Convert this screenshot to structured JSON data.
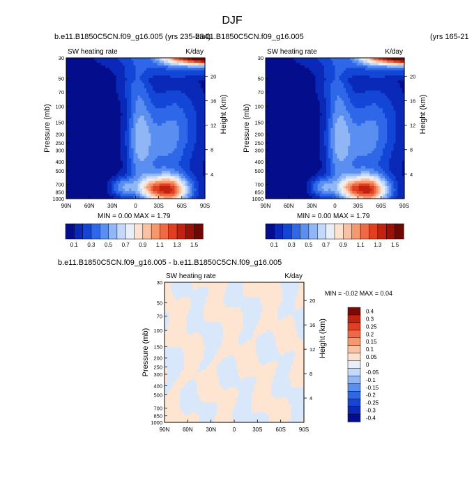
{
  "page": {
    "title": "DJF",
    "top_left_header": "b.e11.B1850C5CN.f09_g16.005 (yrs 235-284)",
    "top_right_header": "b.e11.B1850C5CN.f09_g16.005",
    "top_right_years": "(yrs 165-21",
    "diff_header": "b.e11.B1850C5CN.f09_g16.005 - b.e11.B1850C5CN.f09_g16.005"
  },
  "chart_data": [
    {
      "type": "heatmap",
      "panel": "top-left",
      "variable_label": "SW heating rate",
      "units": "K/day",
      "ylabel": "Pressure (mb)",
      "ylabel_right": "Height (km)",
      "x_ticks": [
        "90N",
        "60N",
        "30N",
        "0",
        "30S",
        "60S",
        "90S"
      ],
      "y_ticks": [
        "30",
        "50",
        "70",
        "100",
        "150",
        "200",
        "250",
        "300",
        "400",
        "500",
        "700",
        "850",
        "1000"
      ],
      "y_right_ticks": [
        "20",
        "16",
        "12",
        "8",
        "4"
      ],
      "ylim": [
        30,
        1000
      ],
      "min_max_label": "MIN =  0.00   MAX =   1.79",
      "min": 0.0,
      "max": 1.79,
      "colorbar_labels": [
        "0.1",
        "0.3",
        "0.5",
        "0.7",
        "0.9",
        "1.1",
        "1.3",
        "1.5"
      ],
      "colorbar_levels": [
        0.1,
        0.2,
        0.3,
        0.4,
        0.5,
        0.6,
        0.7,
        0.8,
        0.9,
        1.0,
        1.1,
        1.2,
        1.3,
        1.4,
        1.5
      ]
    },
    {
      "type": "heatmap",
      "panel": "top-right",
      "variable_label": "SW heating rate",
      "units": "K/day",
      "ylabel": "Pressure (mb)",
      "ylabel_right": "Height (km)",
      "x_ticks": [
        "90N",
        "60N",
        "30N",
        "0",
        "30S",
        "60S",
        "90S"
      ],
      "y_ticks": [
        "30",
        "50",
        "70",
        "100",
        "150",
        "200",
        "250",
        "300",
        "400",
        "500",
        "700",
        "850",
        "1000"
      ],
      "y_right_ticks": [
        "20",
        "16",
        "12",
        "8",
        "4"
      ],
      "ylim": [
        30,
        1000
      ],
      "min_max_label": "MIN =  0.00   MAX =   1.79",
      "min": 0.0,
      "max": 1.79,
      "colorbar_labels": [
        "0.1",
        "0.3",
        "0.5",
        "0.7",
        "0.9",
        "1.1",
        "1.3",
        "1.5"
      ],
      "colorbar_levels": [
        0.1,
        0.2,
        0.3,
        0.4,
        0.5,
        0.6,
        0.7,
        0.8,
        0.9,
        1.0,
        1.1,
        1.2,
        1.3,
        1.4,
        1.5
      ]
    },
    {
      "type": "heatmap",
      "panel": "bottom-difference",
      "variable_label": "SW heating rate",
      "units": "K/day",
      "ylabel": "Pressure (mb)",
      "ylabel_right": "Height (km)",
      "x_ticks": [
        "90N",
        "60N",
        "30N",
        "0",
        "30S",
        "60S",
        "90S"
      ],
      "y_ticks": [
        "30",
        "50",
        "70",
        "100",
        "150",
        "200",
        "250",
        "300",
        "400",
        "500",
        "700",
        "850",
        "1000"
      ],
      "y_right_ticks": [
        "20",
        "16",
        "12",
        "8",
        "4"
      ],
      "ylim": [
        30,
        1000
      ],
      "min_max_label": "MIN = -0.02   MAX =   0.04",
      "min": -0.02,
      "max": 0.04,
      "colorbar_labels": [
        "0.4",
        "0.3",
        "0.25",
        "0.2",
        "0.15",
        "0.1",
        "0.05",
        "0",
        "-0.05",
        "-0.1",
        "-0.15",
        "-0.2",
        "-0.25",
        "-0.3",
        "-0.4"
      ],
      "colorbar_levels": [
        0.4,
        0.3,
        0.25,
        0.2,
        0.15,
        0.1,
        0.05,
        0,
        -0.05,
        -0.1,
        -0.15,
        -0.2,
        -0.25,
        -0.3,
        -0.4
      ]
    }
  ],
  "colors": {
    "seq_palette": [
      "#040e8c",
      "#0a29b8",
      "#1346d6",
      "#2e68e8",
      "#5a8ef0",
      "#90b6f6",
      "#c3d8fa",
      "#e8eff9",
      "#fde2d0",
      "#fac2a2",
      "#f6976e",
      "#ef6a44",
      "#e13f22",
      "#c2220f",
      "#981208",
      "#6e0805"
    ],
    "div_palette": [
      "#7a0a06",
      "#c2220f",
      "#e13f22",
      "#ef6a44",
      "#f6976e",
      "#fac2a2",
      "#fde2d0",
      "#e8eff9",
      "#c3d8fa",
      "#90b6f6",
      "#5a8ef0",
      "#2e68e8",
      "#1346d6",
      "#0a29b8",
      "#040e8c"
    ],
    "diff_pos": "#fde5d2",
    "diff_neg": "#d8e8fa"
  }
}
